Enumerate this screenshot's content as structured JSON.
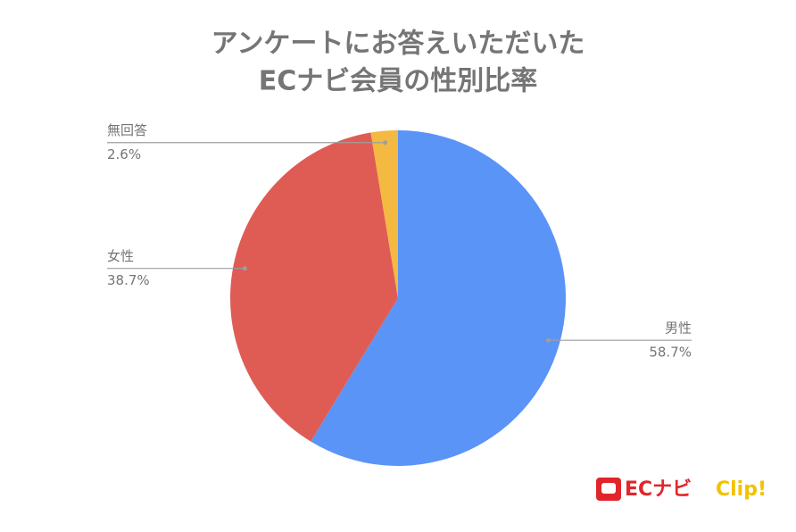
{
  "chart_data": {
    "type": "pie",
    "title": [
      "アンケートにお答えいただいた",
      "ECナビ会員の性別比率"
    ],
    "categories": [
      "男性",
      "女性",
      "無回答"
    ],
    "values": [
      58.7,
      38.7,
      2.6
    ],
    "value_labels": [
      "58.7%",
      "38.7%",
      "2.6%"
    ],
    "colors": [
      "#5b94f7",
      "#df5c55",
      "#f4b940"
    ],
    "logo": [
      "ECナビ",
      "Clip!"
    ]
  }
}
